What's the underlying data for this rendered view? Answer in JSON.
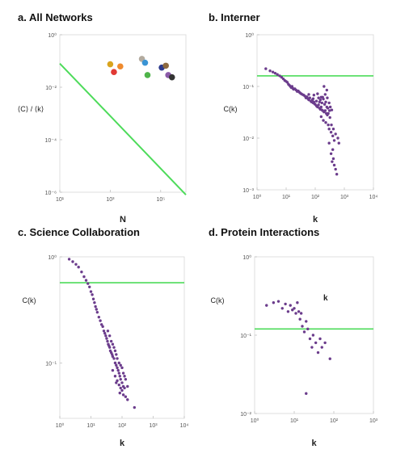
{
  "chart_data": [
    {
      "panel": "a",
      "type": "scatter",
      "title": "a. All Networks",
      "xlabel": "N",
      "ylabel": "⟨C⟩ / ⟨k⟩",
      "xscale": "log",
      "yscale": "log",
      "xlim": [
        10,
        1000000
      ],
      "ylim": [
        1e-06,
        1
      ],
      "xticks": [
        {
          "v": 10,
          "t": "10¹"
        },
        {
          "v": 1000,
          "t": "10³"
        },
        {
          "v": 100000,
          "t": "10⁵"
        }
      ],
      "yticks": [
        {
          "v": 1,
          "t": "10⁰"
        },
        {
          "v": 0.01,
          "t": "10⁻²"
        },
        {
          "v": 0.0001,
          "t": "10⁻⁴"
        },
        {
          "v": 1e-06,
          "t": "10⁻⁶"
        }
      ],
      "line": {
        "x": [
          10,
          1000000
        ],
        "y": [
          0.08,
          8e-07
        ],
        "color": "#4ddb5a"
      },
      "points": [
        {
          "x": 1000,
          "y": 0.075,
          "color": "#d9a41e"
        },
        {
          "x": 1400,
          "y": 0.038,
          "color": "#e13a35"
        },
        {
          "x": 2500,
          "y": 0.062,
          "color": "#ef8a2e"
        },
        {
          "x": 18000,
          "y": 0.12,
          "color": "#b3ab9f"
        },
        {
          "x": 24000,
          "y": 0.086,
          "color": "#3a94d4"
        },
        {
          "x": 30000,
          "y": 0.029,
          "color": "#4fb44a"
        },
        {
          "x": 110000,
          "y": 0.056,
          "color": "#2d3a8c"
        },
        {
          "x": 160000,
          "y": 0.066,
          "color": "#8e6a3f"
        },
        {
          "x": 200000,
          "y": 0.029,
          "color": "#8a5aa8"
        },
        {
          "x": 280000,
          "y": 0.024,
          "color": "#333333"
        }
      ]
    },
    {
      "panel": "b",
      "type": "scatter",
      "title": "b. Interner",
      "xlabel": "k",
      "ylabel": "C(k)",
      "xscale": "log",
      "yscale": "log",
      "xlim": [
        1,
        10000
      ],
      "ylim": [
        0.001,
        1
      ],
      "xticks": [
        {
          "v": 1,
          "t": "10⁰"
        },
        {
          "v": 10,
          "t": "10¹"
        },
        {
          "v": 100,
          "t": "10²"
        },
        {
          "v": 1000,
          "t": "10³"
        },
        {
          "v": 10000,
          "t": "10⁴"
        }
      ],
      "yticks": [
        {
          "v": 1,
          "t": "10⁰"
        },
        {
          "v": 0.1,
          "t": "10⁻¹"
        },
        {
          "v": 0.01,
          "t": "10⁻²"
        },
        {
          "v": 0.001,
          "t": "10⁻³"
        }
      ],
      "hline": 0.16,
      "color": "#6b3c8c",
      "points": [
        [
          2,
          0.22
        ],
        [
          2.8,
          0.2
        ],
        [
          3.5,
          0.19
        ],
        [
          4.2,
          0.18
        ],
        [
          5,
          0.17
        ],
        [
          6,
          0.16
        ],
        [
          7,
          0.15
        ],
        [
          8,
          0.14
        ],
        [
          9,
          0.13
        ],
        [
          10,
          0.125
        ],
        [
          11,
          0.12
        ],
        [
          12,
          0.11
        ],
        [
          13,
          0.105
        ],
        [
          14,
          0.1
        ],
        [
          15,
          0.095
        ],
        [
          16,
          0.1
        ],
        [
          17,
          0.092
        ],
        [
          18,
          0.088
        ],
        [
          20,
          0.09
        ],
        [
          22,
          0.085
        ],
        [
          24,
          0.08
        ],
        [
          26,
          0.082
        ],
        [
          28,
          0.078
        ],
        [
          30,
          0.075
        ],
        [
          33,
          0.072
        ],
        [
          36,
          0.07
        ],
        [
          40,
          0.068
        ],
        [
          44,
          0.065
        ],
        [
          48,
          0.06
        ],
        [
          52,
          0.063
        ],
        [
          56,
          0.058
        ],
        [
          60,
          0.055
        ],
        [
          65,
          0.06
        ],
        [
          70,
          0.052
        ],
        [
          75,
          0.05
        ],
        [
          80,
          0.055
        ],
        [
          85,
          0.048
        ],
        [
          90,
          0.05
        ],
        [
          95,
          0.046
        ],
        [
          100,
          0.045
        ],
        [
          110,
          0.042
        ],
        [
          120,
          0.04
        ],
        [
          130,
          0.044
        ],
        [
          140,
          0.038
        ],
        [
          150,
          0.036
        ],
        [
          160,
          0.04
        ],
        [
          170,
          0.035
        ],
        [
          180,
          0.034
        ],
        [
          200,
          0.032
        ],
        [
          220,
          0.034
        ],
        [
          240,
          0.03
        ],
        [
          260,
          0.028
        ],
        [
          150,
          0.055
        ],
        [
          180,
          0.062
        ],
        [
          220,
          0.07
        ],
        [
          250,
          0.085
        ],
        [
          200,
          0.1
        ],
        [
          120,
          0.072
        ],
        [
          90,
          0.068
        ],
        [
          60,
          0.07
        ],
        [
          160,
          0.026
        ],
        [
          190,
          0.022
        ],
        [
          230,
          0.02
        ],
        [
          280,
          0.018
        ],
        [
          300,
          0.015
        ],
        [
          350,
          0.013
        ],
        [
          400,
          0.011
        ],
        [
          450,
          0.009
        ],
        [
          300,
          0.008
        ],
        [
          400,
          0.006
        ],
        [
          350,
          0.005
        ],
        [
          420,
          0.004
        ],
        [
          380,
          0.0035
        ],
        [
          450,
          0.003
        ],
        [
          500,
          0.0025
        ],
        [
          550,
          0.002
        ],
        [
          280,
          0.03
        ],
        [
          320,
          0.025
        ],
        [
          360,
          0.018
        ],
        [
          420,
          0.015
        ],
        [
          500,
          0.012
        ],
        [
          600,
          0.01
        ],
        [
          650,
          0.008
        ],
        [
          250,
          0.04
        ],
        [
          210,
          0.045
        ],
        [
          170,
          0.048
        ],
        [
          140,
          0.05
        ],
        [
          110,
          0.052
        ],
        [
          85,
          0.058
        ],
        [
          260,
          0.06
        ],
        [
          300,
          0.048
        ],
        [
          330,
          0.04
        ],
        [
          370,
          0.035
        ],
        [
          230,
          0.05
        ],
        [
          190,
          0.057
        ],
        [
          160,
          0.062
        ],
        [
          130,
          0.06
        ],
        [
          270,
          0.038
        ],
        [
          310,
          0.034
        ]
      ]
    },
    {
      "panel": "c",
      "type": "scatter",
      "title": "c. Science Collaboration",
      "xlabel": "k",
      "ylabel": "C(k)",
      "xscale": "log",
      "yscale": "log",
      "xlim": [
        1,
        10000
      ],
      "ylim": [
        0.03,
        1
      ],
      "xticks": [
        {
          "v": 1,
          "t": "10⁰"
        },
        {
          "v": 10,
          "t": "10¹"
        },
        {
          "v": 100,
          "t": "10²"
        },
        {
          "v": 1000,
          "t": "10³"
        },
        {
          "v": 10000,
          "t": "10⁴"
        }
      ],
      "yticks": [
        {
          "v": 1,
          "t": "10⁰"
        },
        {
          "v": 0.1,
          "t": "10⁻¹"
        }
      ],
      "hline": 0.57,
      "color": "#6b3c8c",
      "points": [
        [
          2,
          0.95
        ],
        [
          2.6,
          0.9
        ],
        [
          3.3,
          0.85
        ],
        [
          4,
          0.8
        ],
        [
          5,
          0.72
        ],
        [
          6,
          0.65
        ],
        [
          7,
          0.6
        ],
        [
          8,
          0.56
        ],
        [
          9,
          0.52
        ],
        [
          10,
          0.47
        ],
        [
          11,
          0.44
        ],
        [
          12,
          0.4
        ],
        [
          13,
          0.37
        ],
        [
          14,
          0.34
        ],
        [
          15,
          0.32
        ],
        [
          16,
          0.3
        ],
        [
          18,
          0.27
        ],
        [
          20,
          0.25
        ],
        [
          22,
          0.23
        ],
        [
          24,
          0.22
        ],
        [
          26,
          0.2
        ],
        [
          28,
          0.19
        ],
        [
          30,
          0.18
        ],
        [
          32,
          0.17
        ],
        [
          34,
          0.16
        ],
        [
          36,
          0.15
        ],
        [
          38,
          0.145
        ],
        [
          40,
          0.14
        ],
        [
          42,
          0.13
        ],
        [
          45,
          0.125
        ],
        [
          48,
          0.12
        ],
        [
          50,
          0.115
        ],
        [
          55,
          0.11
        ],
        [
          60,
          0.1
        ],
        [
          65,
          0.095
        ],
        [
          70,
          0.09
        ],
        [
          75,
          0.085
        ],
        [
          80,
          0.08
        ],
        [
          85,
          0.075
        ],
        [
          90,
          0.07
        ],
        [
          100,
          0.065
        ],
        [
          110,
          0.06
        ],
        [
          120,
          0.058
        ],
        [
          35,
          0.2
        ],
        [
          40,
          0.18
        ],
        [
          45,
          0.16
        ],
        [
          50,
          0.15
        ],
        [
          55,
          0.14
        ],
        [
          60,
          0.13
        ],
        [
          65,
          0.12
        ],
        [
          70,
          0.11
        ],
        [
          80,
          0.1
        ],
        [
          90,
          0.095
        ],
        [
          100,
          0.09
        ],
        [
          110,
          0.08
        ],
        [
          120,
          0.075
        ],
        [
          130,
          0.07
        ],
        [
          60,
          0.075
        ],
        [
          70,
          0.068
        ],
        [
          80,
          0.062
        ],
        [
          90,
          0.058
        ],
        [
          100,
          0.055
        ],
        [
          110,
          0.05
        ],
        [
          130,
          0.048
        ],
        [
          150,
          0.045
        ],
        [
          50,
          0.085
        ],
        [
          65,
          0.065
        ],
        [
          85,
          0.052
        ],
        [
          250,
          0.038
        ],
        [
          150,
          0.06
        ]
      ]
    },
    {
      "panel": "d",
      "type": "scatter",
      "title": "d. Protein Interactions",
      "xlabel": "k",
      "ylabel": "C(k)",
      "annotation": "k",
      "xscale": "log",
      "yscale": "log",
      "xlim": [
        1,
        1000
      ],
      "ylim": [
        0.01,
        1
      ],
      "xticks": [
        {
          "v": 1,
          "t": "10⁰"
        },
        {
          "v": 10,
          "t": "10¹"
        },
        {
          "v": 100,
          "t": "10²"
        },
        {
          "v": 1000,
          "t": "10³"
        }
      ],
      "yticks": [
        {
          "v": 1,
          "t": "10⁰"
        },
        {
          "v": 0.1,
          "t": "10⁻¹"
        },
        {
          "v": 0.01,
          "t": "10⁻²"
        }
      ],
      "hline": 0.12,
      "color": "#6b3c8c",
      "points": [
        [
          2,
          0.24
        ],
        [
          3,
          0.26
        ],
        [
          4,
          0.27
        ],
        [
          5,
          0.22
        ],
        [
          6,
          0.25
        ],
        [
          7,
          0.2
        ],
        [
          8,
          0.24
        ],
        [
          10,
          0.22
        ],
        [
          12,
          0.26
        ],
        [
          15,
          0.19
        ],
        [
          14,
          0.16
        ],
        [
          16,
          0.13
        ],
        [
          18,
          0.11
        ],
        [
          20,
          0.15
        ],
        [
          22,
          0.12
        ],
        [
          25,
          0.09
        ],
        [
          28,
          0.07
        ],
        [
          30,
          0.1
        ],
        [
          35,
          0.08
        ],
        [
          40,
          0.06
        ],
        [
          45,
          0.09
        ],
        [
          50,
          0.07
        ],
        [
          60,
          0.08
        ],
        [
          80,
          0.05
        ],
        [
          20,
          0.018
        ],
        [
          9,
          0.21
        ],
        [
          11,
          0.19
        ],
        [
          13,
          0.2
        ]
      ]
    }
  ]
}
